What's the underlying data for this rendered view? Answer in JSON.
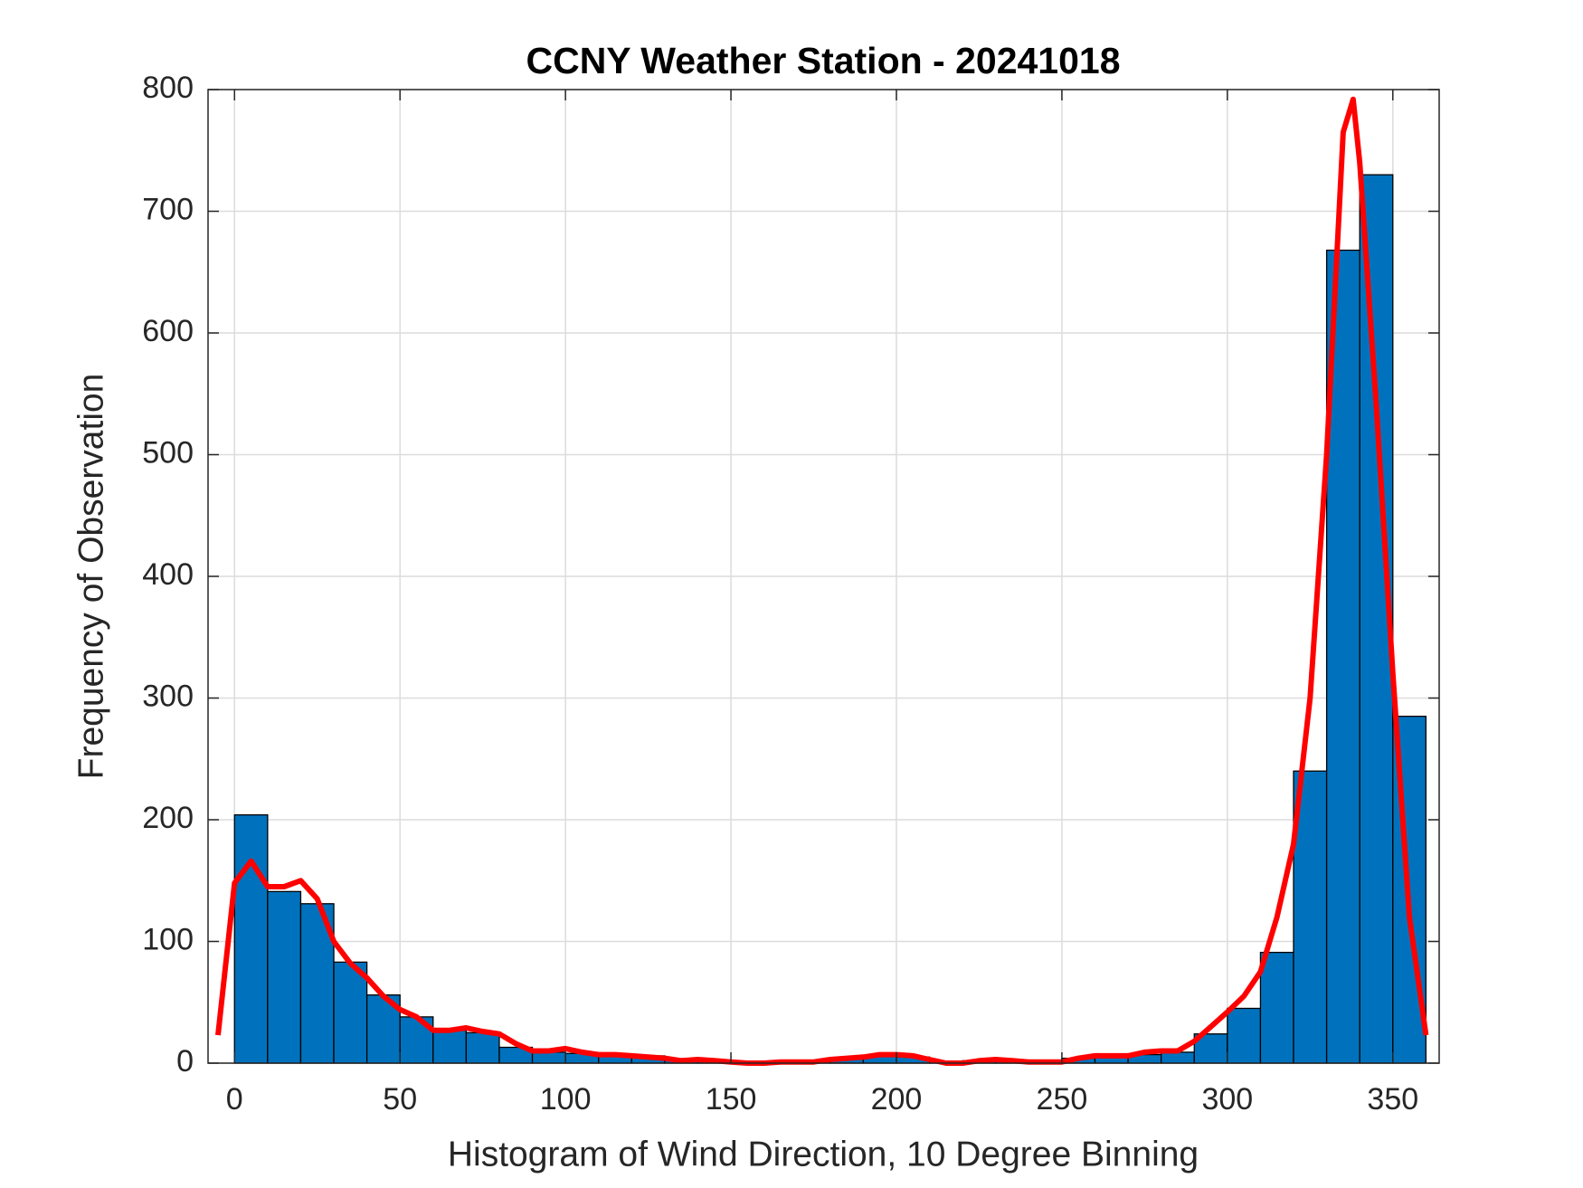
{
  "chart_data": {
    "type": "histogram",
    "title": "CCNY Weather Station - 20241018",
    "xlabel": "Histogram of Wind Direction, 10 Degree Binning",
    "ylabel": "Frequency of Observation",
    "bins": [
      0,
      10,
      20,
      30,
      40,
      50,
      60,
      70,
      80,
      90,
      100,
      110,
      120,
      130,
      140,
      150,
      160,
      170,
      180,
      190,
      200,
      210,
      220,
      230,
      240,
      250,
      260,
      270,
      280,
      290,
      300,
      310,
      320,
      330,
      340,
      350,
      360
    ],
    "counts": [
      204,
      141,
      131,
      83,
      56,
      38,
      27,
      25,
      13,
      9,
      8,
      7,
      6,
      3,
      2,
      1,
      1,
      2,
      4,
      6,
      5,
      1,
      2,
      2,
      1,
      4,
      5,
      7,
      9,
      24,
      45,
      91,
      240,
      668,
      730,
      285
    ],
    "color": "#0072bd",
    "curve": {
      "type": "line",
      "color": "#ff0000",
      "x": [
        -5,
        0,
        5,
        10,
        15,
        20,
        25,
        30,
        35,
        40,
        45,
        50,
        55,
        60,
        65,
        70,
        75,
        80,
        85,
        90,
        95,
        100,
        105,
        110,
        115,
        120,
        125,
        130,
        135,
        140,
        145,
        150,
        155,
        160,
        165,
        170,
        175,
        180,
        185,
        190,
        195,
        200,
        205,
        210,
        215,
        220,
        225,
        230,
        235,
        240,
        245,
        250,
        255,
        260,
        265,
        270,
        275,
        280,
        285,
        290,
        295,
        300,
        305,
        310,
        315,
        320,
        325,
        330,
        335,
        338,
        340,
        345,
        350,
        355,
        360
      ],
      "values": [
        23,
        148,
        166,
        145,
        145,
        150,
        135,
        100,
        82,
        70,
        55,
        44,
        38,
        27,
        27,
        29,
        26,
        24,
        16,
        10,
        10,
        12,
        9,
        7,
        7,
        6,
        5,
        4,
        2,
        3,
        2,
        1,
        0,
        0,
        1,
        1,
        1,
        3,
        4,
        5,
        7,
        7,
        6,
        3,
        0,
        0,
        2,
        3,
        2,
        1,
        1,
        1,
        4,
        6,
        6,
        6,
        9,
        10,
        10,
        18,
        30,
        42,
        55,
        75,
        120,
        180,
        300,
        500,
        765,
        792,
        740,
        540,
        320,
        120,
        23
      ]
    },
    "xlim": [
      -8,
      364
    ],
    "ylim": [
      0,
      800
    ],
    "xticks": [
      0,
      50,
      100,
      150,
      200,
      250,
      300,
      350
    ],
    "yticks": [
      0,
      100,
      200,
      300,
      400,
      500,
      600,
      700,
      800
    ],
    "grid": true
  }
}
